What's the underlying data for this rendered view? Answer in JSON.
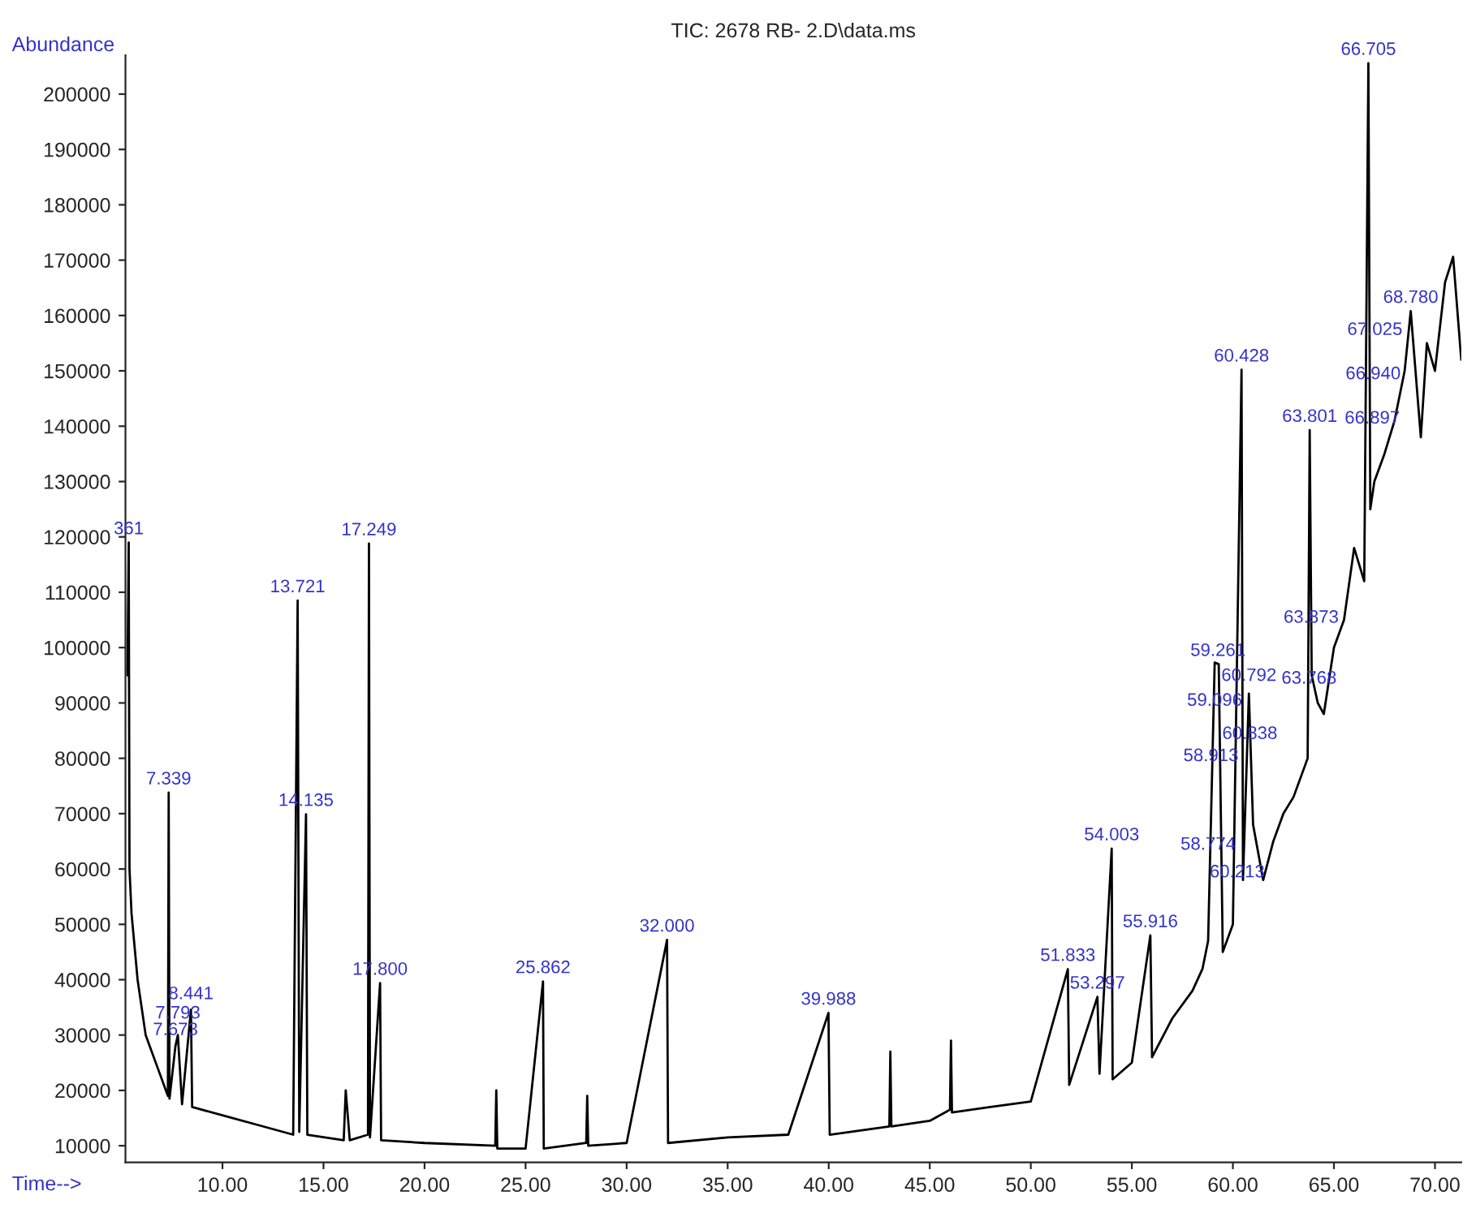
{
  "chart_data": {
    "type": "line",
    "title": "TIC: 2678 RB- 2.D\\data.ms",
    "xlabel": "Time-->",
    "ylabel": "Abundance",
    "xlim": [
      5.2,
      71.3
    ],
    "ylim": [
      7000,
      207000
    ],
    "xticks": [
      {
        "value": 10,
        "label": "10.00"
      },
      {
        "value": 15,
        "label": "15.00"
      },
      {
        "value": 20,
        "label": "20.00"
      },
      {
        "value": 25,
        "label": "25.00"
      },
      {
        "value": 30,
        "label": "30.00"
      },
      {
        "value": 35,
        "label": "35.00"
      },
      {
        "value": 40,
        "label": "40.00"
      },
      {
        "value": 45,
        "label": "45.00"
      },
      {
        "value": 50,
        "label": "50.00"
      },
      {
        "value": 55,
        "label": "55.00"
      },
      {
        "value": 60,
        "label": "60.00"
      },
      {
        "value": 65,
        "label": "65.00"
      },
      {
        "value": 70,
        "label": "70.00"
      }
    ],
    "yticks": [
      10000,
      20000,
      30000,
      40000,
      50000,
      60000,
      70000,
      80000,
      90000,
      100000,
      110000,
      120000,
      130000,
      140000,
      150000,
      160000,
      170000,
      180000,
      190000,
      200000
    ],
    "grid": false,
    "legend": false,
    "marker": "none",
    "line_style": "solid",
    "series": [
      {
        "color": "#000000",
        "x": [
          5.3,
          5.361,
          5.4,
          5.5,
          5.8,
          6.2,
          6.8,
          7.3,
          7.339,
          7.38,
          7.673,
          7.793,
          8.0,
          8.441,
          8.5,
          10.0,
          12.0,
          13.5,
          13.721,
          13.8,
          14.135,
          14.2,
          16.0,
          16.1,
          16.3,
          17.2,
          17.249,
          17.3,
          17.8,
          17.85,
          20.0,
          23.5,
          23.55,
          23.6,
          25.0,
          25.862,
          25.9,
          28.0,
          28.05,
          28.1,
          30.0,
          32.0,
          32.05,
          35.0,
          38.0,
          39.988,
          40.05,
          43.0,
          43.05,
          43.1,
          45.0,
          46.0,
          46.05,
          46.1,
          48.0,
          50.0,
          51.833,
          51.9,
          53.297,
          53.4,
          54.003,
          54.05,
          55.0,
          55.916,
          56.0,
          57.0,
          58.0,
          58.5,
          58.774,
          59.1,
          59.3,
          59.5,
          60.0,
          60.428,
          60.5,
          60.792,
          61.0,
          61.5,
          62.0,
          62.5,
          63.0,
          63.7,
          63.801,
          63.9,
          64.2,
          64.5,
          65.0,
          65.5,
          66.0,
          66.5,
          66.705,
          66.8,
          67.0,
          67.5,
          68.0,
          68.5,
          68.8,
          69.3,
          69.6,
          70.0,
          70.5,
          70.9,
          71.3
        ],
        "values": [
          95000,
          119000,
          60000,
          52000,
          40000,
          30000,
          24000,
          19000,
          73800,
          18500,
          28000,
          30000,
          17500,
          34600,
          17000,
          15500,
          13500,
          12000,
          108500,
          12500,
          69900,
          12000,
          11000,
          20000,
          11000,
          12000,
          118800,
          11500,
          39400,
          11000,
          10500,
          10000,
          20000,
          9500,
          9500,
          39700,
          9500,
          10500,
          19000,
          10000,
          10500,
          47200,
          10500,
          11500,
          12000,
          34000,
          12000,
          13500,
          27000,
          13500,
          14500,
          16500,
          29000,
          16000,
          17000,
          18000,
          41900,
          21000,
          36900,
          23000,
          63700,
          22000,
          25000,
          48000,
          26000,
          33000,
          38000,
          42000,
          47000,
          97300,
          97000,
          45000,
          50000,
          150200,
          58000,
          91700,
          68000,
          58000,
          65000,
          70000,
          73000,
          80000,
          139300,
          95000,
          90000,
          88000,
          100000,
          105000,
          118000,
          112000,
          205600,
          125000,
          130000,
          135000,
          141000,
          150000,
          160800,
          138000,
          155000,
          150000,
          166000,
          170600,
          152000
        ]
      }
    ],
    "annotations": [
      {
        "text": "361",
        "x": 5.361,
        "y": 119000
      },
      {
        "text": "7.339",
        "x": 7.339,
        "y": 73800
      },
      {
        "text": "7.793",
        "x": 7.793,
        "y": 31500
      },
      {
        "text": "7.673",
        "x": 7.673,
        "y": 28500
      },
      {
        "text": "8.441",
        "x": 8.441,
        "y": 35000
      },
      {
        "text": "13.721",
        "x": 13.721,
        "y": 108500
      },
      {
        "text": "14.135",
        "x": 14.135,
        "y": 69900
      },
      {
        "text": "17.249",
        "x": 17.249,
        "y": 118800
      },
      {
        "text": "17.800",
        "x": 17.8,
        "y": 39400
      },
      {
        "text": "25.862",
        "x": 25.862,
        "y": 39700
      },
      {
        "text": "32.000",
        "x": 32.0,
        "y": 47200
      },
      {
        "text": "39.988",
        "x": 39.988,
        "y": 34000
      },
      {
        "text": "51.833",
        "x": 51.833,
        "y": 41900
      },
      {
        "text": "53.297",
        "x": 53.297,
        "y": 36900
      },
      {
        "text": "54.003",
        "x": 54.003,
        "y": 63700
      },
      {
        "text": "55.916",
        "x": 55.916,
        "y": 48000
      },
      {
        "text": "58.774",
        "x": 58.774,
        "y": 62000
      },
      {
        "text": "58.913",
        "x": 58.913,
        "y": 78000
      },
      {
        "text": "59.096",
        "x": 59.096,
        "y": 88000
      },
      {
        "text": "59.261",
        "x": 59.261,
        "y": 97000
      },
      {
        "text": "60.213",
        "x": 60.213,
        "y": 57000
      },
      {
        "text": "60.428",
        "x": 60.428,
        "y": 150200
      },
      {
        "text": "60.792",
        "x": 60.792,
        "y": 92500
      },
      {
        "text": "60.838",
        "x": 60.838,
        "y": 82000
      },
      {
        "text": "63.801",
        "x": 63.801,
        "y": 139300
      },
      {
        "text": "63.873",
        "x": 63.873,
        "y": 103000
      },
      {
        "text": "63.768",
        "x": 63.768,
        "y": 92000
      },
      {
        "text": "66.705",
        "x": 66.705,
        "y": 205600
      },
      {
        "text": "66.897",
        "x": 66.897,
        "y": 139000
      },
      {
        "text": "66.940",
        "x": 66.94,
        "y": 147000
      },
      {
        "text": "67.025",
        "x": 67.025,
        "y": 155000
      },
      {
        "text": "68.780",
        "x": 68.8,
        "y": 160800
      }
    ]
  }
}
